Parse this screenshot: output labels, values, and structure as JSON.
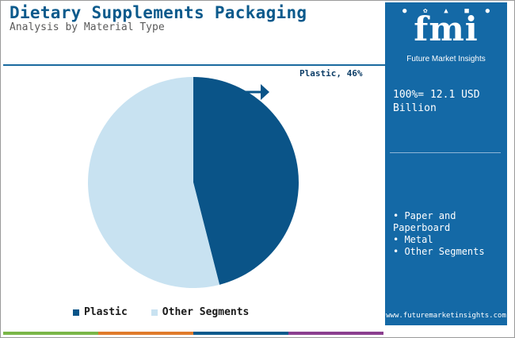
{
  "header": {
    "title": "Dietary Supplements Packaging",
    "subtitle": "Analysis by Material Type"
  },
  "chart_data": {
    "type": "pie",
    "title": "Dietary Supplements Packaging",
    "subtitle": "Analysis by Material Type",
    "labels": [
      "Plastic",
      "Other Segments"
    ],
    "values": [
      46,
      54
    ],
    "colors": [
      "#0a5488",
      "#c8e2f1"
    ],
    "annotations": [
      "Plastic, 46%"
    ],
    "legend_position": "bottom"
  },
  "legend": {
    "items": [
      {
        "label": "Plastic",
        "color": "#0a5488"
      },
      {
        "label": "Other Segments",
        "color": "#c8e2f1"
      }
    ]
  },
  "side_panel": {
    "logo_text": "fmi",
    "logo_tagline": "Future Market Insights",
    "total_label": "100%= 12.1 USD Billion",
    "other_segments": [
      "• Paper and Paperboard",
      "• Metal",
      "• Other Segments"
    ],
    "website": "www.futuremarketinsights.com"
  },
  "colors": {
    "title": "#0b5a8c",
    "panel": "#1469a6",
    "bottom_bar": [
      "#7ab648",
      "#e07b2c",
      "#0b5a8c",
      "#8b3f8f"
    ]
  }
}
